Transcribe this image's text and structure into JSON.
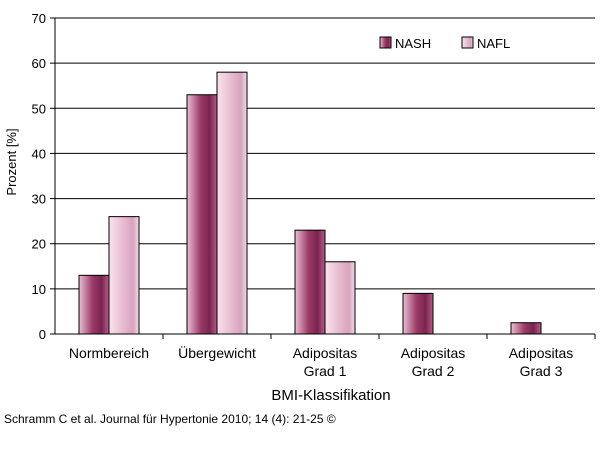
{
  "chart_data": {
    "type": "bar",
    "title": "",
    "xlabel": "BMI-Klassifikation",
    "ylabel": "Prozent [%]",
    "ylim": [
      0,
      70
    ],
    "yticks": [
      "0",
      "10",
      "20",
      "30",
      "40",
      "50",
      "60",
      "70"
    ],
    "grid": true,
    "legend_position": "top-right",
    "categories": [
      [
        "Normbereich"
      ],
      [
        "Übergewicht"
      ],
      [
        "Adipositas",
        "Grad 1"
      ],
      [
        "Adipositas",
        "Grad 2"
      ],
      [
        "Adipositas",
        "Grad 3"
      ]
    ],
    "series": [
      {
        "name": "NASH",
        "values": [
          13,
          53,
          23,
          9,
          2.5
        ],
        "color": "#9b3a66"
      },
      {
        "name": "NAFL",
        "values": [
          26,
          58,
          16,
          0,
          0
        ],
        "color": "#ebc3d6"
      }
    ]
  },
  "footer": {
    "citation": "Schramm C et al. Journal für Hypertonie 2010; 14 (4): 21-25 ©"
  }
}
